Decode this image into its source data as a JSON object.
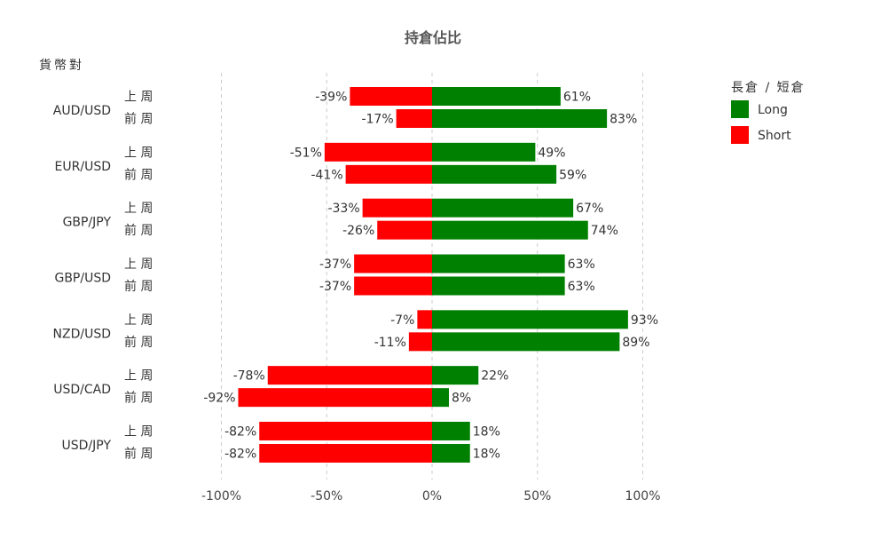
{
  "chart_data": {
    "type": "bar",
    "orientation": "horizontal",
    "title": "持倉佔比",
    "ylabel": "貨幣對",
    "xlim": [
      -100,
      100
    ],
    "x_ticks": [
      "-100%",
      "-50%",
      "0%",
      "50%",
      "100%"
    ],
    "x_tick_values": [
      -100,
      -50,
      0,
      50,
      100
    ],
    "grid": true,
    "legend_title": "長倉 / 短倉",
    "legend_position": "top-right",
    "period_labels": [
      "上 周",
      "前 周"
    ],
    "categories": [
      "AUD/USD",
      "EUR/USD",
      "GBP/JPY",
      "GBP/USD",
      "NZD/USD",
      "USD/CAD",
      "USD/JPY"
    ],
    "series": [
      {
        "name": "Long",
        "color": "#008000",
        "values": [
          [
            61,
            83
          ],
          [
            49,
            59
          ],
          [
            67,
            74
          ],
          [
            63,
            63
          ],
          [
            93,
            89
          ],
          [
            22,
            8
          ],
          [
            18,
            18
          ]
        ]
      },
      {
        "name": "Short",
        "color": "#ff0000",
        "values": [
          [
            -39,
            -17
          ],
          [
            -51,
            -41
          ],
          [
            -33,
            -26
          ],
          [
            -37,
            -37
          ],
          [
            -7,
            -11
          ],
          [
            -78,
            -92
          ],
          [
            -82,
            -82
          ]
        ]
      }
    ]
  }
}
